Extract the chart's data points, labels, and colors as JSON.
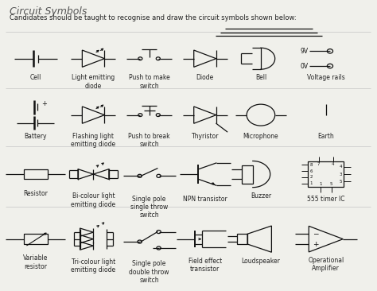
{
  "title": "Circuit Symbols",
  "subtitle": "Candidates should be taught to recognise and draw the circuit symbols shown below:",
  "bg_color": "#f0f0eb",
  "text_color": "#222222",
  "line_color": "#111111",
  "title_fontsize": 9,
  "subtitle_fontsize": 6.0,
  "label_fontsize": 5.5,
  "figsize": [
    4.74,
    3.66
  ],
  "dpi": 100,
  "cols": [
    0.09,
    0.245,
    0.395,
    0.545,
    0.695,
    0.87
  ],
  "rows": [
    0.8,
    0.6,
    0.39,
    0.16
  ]
}
